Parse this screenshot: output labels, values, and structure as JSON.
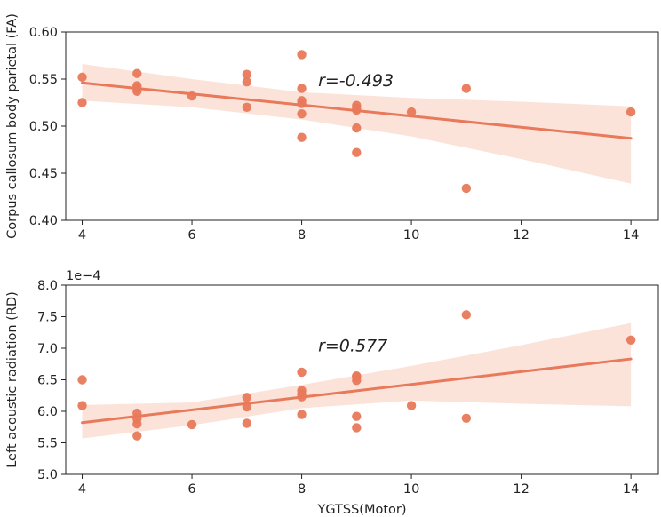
{
  "colors": {
    "marker": "#e8795a",
    "line": "#e8795a",
    "band": "#fbe3da",
    "axis": "#222222"
  },
  "chart_data": [
    {
      "type": "scatter",
      "regression": true,
      "x": [
        4,
        4,
        5,
        5,
        5,
        5,
        6,
        7,
        7,
        7,
        8,
        8,
        8,
        8,
        8,
        8,
        9,
        9,
        9,
        9,
        9,
        10,
        11,
        11,
        14
      ],
      "y": [
        0.552,
        0.525,
        0.556,
        0.543,
        0.54,
        0.537,
        0.532,
        0.555,
        0.547,
        0.52,
        0.576,
        0.54,
        0.527,
        0.524,
        0.513,
        0.488,
        0.522,
        0.517,
        0.498,
        0.472,
        0.519,
        0.515,
        0.54,
        0.434,
        0.515
      ],
      "fit_line": {
        "x": [
          4,
          14
        ],
        "y": [
          0.546,
          0.487
        ]
      },
      "ci_band": {
        "x": [
          4,
          6,
          8,
          10,
          12,
          14
        ],
        "upper": [
          0.566,
          0.55,
          0.536,
          0.53,
          0.526,
          0.521
        ],
        "lower": [
          0.527,
          0.52,
          0.507,
          0.489,
          0.465,
          0.439
        ]
      },
      "xlim": [
        3.7,
        14.5
      ],
      "ylim": [
        0.4,
        0.6
      ],
      "xticks": [
        4,
        6,
        8,
        10,
        12,
        14
      ],
      "xtick_labels": [
        "4",
        "6",
        "8",
        "10",
        "12",
        "14"
      ],
      "yticks": [
        0.4,
        0.45,
        0.5,
        0.55,
        0.6
      ],
      "ytick_labels": [
        "0.40",
        "0.45",
        "0.50",
        "0.55",
        "0.60"
      ],
      "xlabel": "",
      "ylabel": "Corpus callosum body parietal (FA)",
      "annotation": {
        "text": "r=-0.493",
        "x": 8.3,
        "y": 0.549
      }
    },
    {
      "type": "scatter",
      "regression": true,
      "x": [
        4,
        4,
        5,
        5,
        5,
        5,
        6,
        7,
        7,
        7,
        8,
        8,
        8,
        8,
        8,
        9,
        9,
        9,
        9,
        9,
        10,
        11,
        11,
        14
      ],
      "y": [
        6.5,
        6.09,
        5.97,
        5.88,
        5.8,
        5.61,
        5.79,
        6.22,
        6.07,
        5.81,
        6.62,
        6.33,
        6.27,
        6.23,
        5.95,
        6.56,
        6.49,
        5.92,
        5.74,
        6.55,
        6.09,
        7.53,
        5.89,
        7.13
      ],
      "fit_line": {
        "x": [
          4,
          14
        ],
        "y": [
          5.82,
          6.83
        ]
      },
      "ci_band": {
        "x": [
          4,
          6,
          8,
          10,
          12,
          14
        ],
        "upper": [
          6.1,
          6.14,
          6.42,
          6.72,
          7.05,
          7.4
        ],
        "lower": [
          5.57,
          5.78,
          6.05,
          6.17,
          6.12,
          6.08
        ]
      },
      "xlim": [
        3.7,
        14.5
      ],
      "ylim": [
        5.0,
        8.0
      ],
      "xticks": [
        4,
        6,
        8,
        10,
        12,
        14
      ],
      "xtick_labels": [
        "4",
        "6",
        "8",
        "10",
        "12",
        "14"
      ],
      "yticks": [
        5.0,
        5.5,
        6.0,
        6.5,
        7.0,
        7.5,
        8.0
      ],
      "ytick_labels": [
        "5.0",
        "5.5",
        "6.0",
        "6.5",
        "7.0",
        "7.5",
        "8.0"
      ],
      "offset_text": "1e−4",
      "xlabel": "YGTSS(Motor)",
      "ylabel": "Left acoustic radiation (RD)",
      "annotation": {
        "text": "r=0.577",
        "x": 8.3,
        "y": 7.05
      }
    }
  ]
}
